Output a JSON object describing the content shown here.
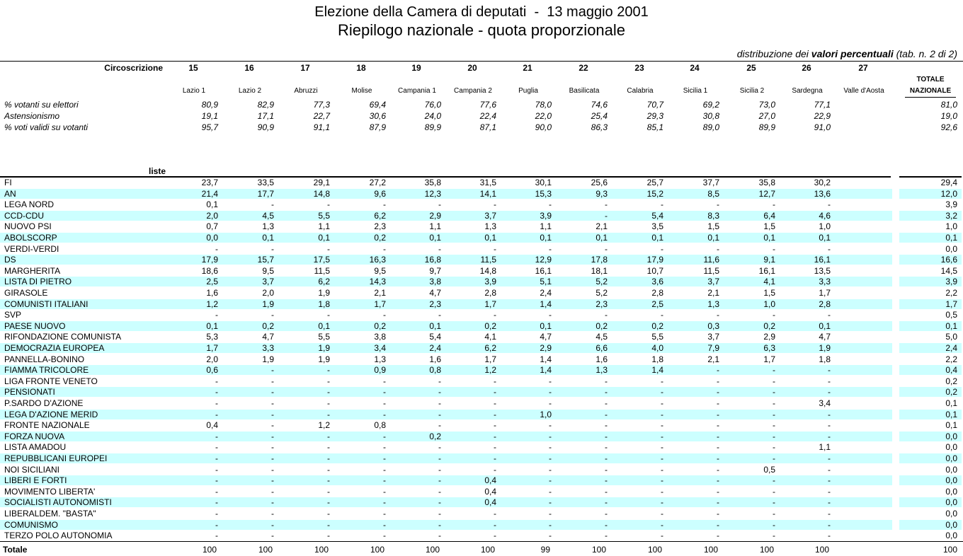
{
  "header": {
    "title": "Elezione della Camera di deputati  -  13 maggio 2001",
    "subtitle": "Riepilogo nazionale - quota proporzionale",
    "note_prefix": "distribuzione dei",
    "note_bold": "valori percentuali",
    "note_suffix": "(tab. n. 2 di 2)"
  },
  "columns": {
    "label": "Circoscrizione",
    "numbers": [
      "15",
      "16",
      "17",
      "18",
      "19",
      "20",
      "21",
      "22",
      "23",
      "24",
      "25",
      "26",
      "27"
    ],
    "names": [
      "Lazio 1",
      "Lazio 2",
      "Abruzzi",
      "Molise",
      "Campania 1",
      "Campania 2",
      "Puglia",
      "Basilicata",
      "Calabria",
      "Sicilia 1",
      "Sicilia 2",
      "Sardegna",
      "Valle d'Aosta"
    ],
    "total_label": [
      "TOTALE",
      "NAZIONALE"
    ]
  },
  "stats": [
    {
      "label": "% votanti su elettori",
      "values": [
        "80,9",
        "82,9",
        "77,3",
        "69,4",
        "76,0",
        "77,6",
        "78,0",
        "74,6",
        "70,7",
        "69,2",
        "73,0",
        "77,1"
      ],
      "total": "81,0"
    },
    {
      "label": "Astensionismo",
      "values": [
        "19,1",
        "17,1",
        "22,7",
        "30,6",
        "24,0",
        "22,4",
        "22,0",
        "25,4",
        "29,3",
        "30,8",
        "27,0",
        "22,9"
      ],
      "total": "19,0"
    },
    {
      "label": "% voti validi su votanti",
      "values": [
        "95,7",
        "90,9",
        "91,1",
        "87,9",
        "89,9",
        "87,1",
        "90,0",
        "86,3",
        "85,1",
        "89,0",
        "89,9",
        "91,0"
      ],
      "total": "92,6"
    }
  ],
  "lists": {
    "label": "liste",
    "rows": [
      {
        "name": "FI",
        "values": [
          "23,7",
          "33,5",
          "29,1",
          "27,2",
          "35,8",
          "31,5",
          "30,1",
          "25,6",
          "25,7",
          "37,7",
          "35,8",
          "30,2"
        ],
        "total": "29,4"
      },
      {
        "name": "AN",
        "values": [
          "21,4",
          "17,7",
          "14,8",
          "9,6",
          "12,3",
          "14,1",
          "15,3",
          "9,3",
          "15,2",
          "8,5",
          "12,7",
          "13,6"
        ],
        "total": "12,0"
      },
      {
        "name": "LEGA NORD",
        "values": [
          "0,1",
          "-",
          "-",
          "-",
          "-",
          "-",
          "-",
          "-",
          "-",
          "-",
          "-",
          "-"
        ],
        "total": "3,9"
      },
      {
        "name": "CCD-CDU",
        "values": [
          "2,0",
          "4,5",
          "5,5",
          "6,2",
          "2,9",
          "3,7",
          "3,9",
          "-",
          "5,4",
          "8,3",
          "6,4",
          "4,6"
        ],
        "total": "3,2"
      },
      {
        "name": "NUOVO PSI",
        "values": [
          "0,7",
          "1,3",
          "1,1",
          "2,3",
          "1,1",
          "1,3",
          "1,1",
          "2,1",
          "3,5",
          "1,5",
          "1,5",
          "1,0"
        ],
        "total": "1,0"
      },
      {
        "name": "ABOLSCORP",
        "values": [
          "0,0",
          "0,1",
          "0,1",
          "0,2",
          "0,1",
          "0,1",
          "0,1",
          "0,1",
          "0,1",
          "0,1",
          "0,1",
          "0,1"
        ],
        "total": "0,1"
      },
      {
        "name": "VERDI-VERDI",
        "values": [
          "-",
          "-",
          "-",
          "-",
          "-",
          "-",
          "-",
          "-",
          "-",
          "-",
          "-",
          "-"
        ],
        "total": "0,0"
      },
      {
        "name": "DS",
        "values": [
          "17,9",
          "15,7",
          "17,5",
          "16,3",
          "16,8",
          "11,5",
          "12,9",
          "17,8",
          "17,9",
          "11,6",
          "9,1",
          "16,1"
        ],
        "total": "16,6"
      },
      {
        "name": "MARGHERITA",
        "values": [
          "18,6",
          "9,5",
          "11,5",
          "9,5",
          "9,7",
          "14,8",
          "16,1",
          "18,1",
          "10,7",
          "11,5",
          "16,1",
          "13,5"
        ],
        "total": "14,5"
      },
      {
        "name": "LISTA DI PIETRO",
        "values": [
          "2,5",
          "3,7",
          "6,2",
          "14,3",
          "3,8",
          "3,9",
          "5,1",
          "5,2",
          "3,6",
          "3,7",
          "4,1",
          "3,3"
        ],
        "total": "3,9"
      },
      {
        "name": "GIRASOLE",
        "values": [
          "1,6",
          "2,0",
          "1,9",
          "2,1",
          "4,7",
          "2,8",
          "2,4",
          "5,2",
          "2,8",
          "2,1",
          "1,5",
          "1,7"
        ],
        "total": "2,2"
      },
      {
        "name": "COMUNISTI ITALIANI",
        "values": [
          "1,2",
          "1,9",
          "1,8",
          "1,7",
          "2,3",
          "1,7",
          "1,4",
          "2,3",
          "2,5",
          "1,3",
          "1,0",
          "2,8"
        ],
        "total": "1,7"
      },
      {
        "name": "SVP",
        "values": [
          "-",
          "-",
          "-",
          "-",
          "-",
          "-",
          "-",
          "-",
          "-",
          "-",
          "-",
          "-"
        ],
        "total": "0,5"
      },
      {
        "name": "PAESE NUOVO",
        "values": [
          "0,1",
          "0,2",
          "0,1",
          "0,2",
          "0,1",
          "0,2",
          "0,1",
          "0,2",
          "0,2",
          "0,3",
          "0,2",
          "0,1"
        ],
        "total": "0,1"
      },
      {
        "name": "RIFONDAZIONE COMUNISTA",
        "values": [
          "5,3",
          "4,7",
          "5,5",
          "3,8",
          "5,4",
          "4,1",
          "4,7",
          "4,5",
          "5,5",
          "3,7",
          "2,9",
          "4,7"
        ],
        "total": "5,0"
      },
      {
        "name": "DEMOCRAZIA EUROPEA",
        "values": [
          "1,7",
          "3,3",
          "1,9",
          "3,4",
          "2,4",
          "6,2",
          "2,9",
          "6,6",
          "4,0",
          "7,9",
          "6,3",
          "1,9"
        ],
        "total": "2,4"
      },
      {
        "name": "PANNELLA-BONINO",
        "values": [
          "2,0",
          "1,9",
          "1,9",
          "1,3",
          "1,6",
          "1,7",
          "1,4",
          "1,6",
          "1,8",
          "2,1",
          "1,7",
          "1,8"
        ],
        "total": "2,2"
      },
      {
        "name": "FIAMMA TRICOLORE",
        "values": [
          "0,6",
          "-",
          "-",
          "0,9",
          "0,8",
          "1,2",
          "1,4",
          "1,3",
          "1,4",
          "-",
          "-",
          "-"
        ],
        "total": "0,4"
      },
      {
        "name": "LIGA FRONTE VENETO",
        "values": [
          "-",
          "-",
          "-",
          "-",
          "-",
          "-",
          "-",
          "-",
          "-",
          "-",
          "-",
          "-"
        ],
        "total": "0,2"
      },
      {
        "name": "PENSIONATI",
        "values": [
          "-",
          "-",
          "-",
          "-",
          "-",
          "-",
          "-",
          "-",
          "-",
          "-",
          "-",
          "-"
        ],
        "total": "0,2"
      },
      {
        "name": "P.SARDO D'AZIONE",
        "values": [
          "-",
          "-",
          "-",
          "-",
          "-",
          "-",
          "-",
          "-",
          "-",
          "-",
          "-",
          "3,4"
        ],
        "total": "0,1"
      },
      {
        "name": "LEGA D'AZIONE MERID",
        "values": [
          "-",
          "-",
          "-",
          "-",
          "-",
          "-",
          "1,0",
          "-",
          "-",
          "-",
          "-",
          "-"
        ],
        "total": "0,1"
      },
      {
        "name": "FRONTE NAZIONALE",
        "values": [
          "0,4",
          "-",
          "1,2",
          "0,8",
          "-",
          "-",
          "-",
          "-",
          "-",
          "-",
          "-",
          "-"
        ],
        "total": "0,1"
      },
      {
        "name": "FORZA NUOVA",
        "values": [
          "-",
          "-",
          "-",
          "-",
          "0,2",
          "-",
          "-",
          "-",
          "-",
          "-",
          "-",
          "-"
        ],
        "total": "0,0"
      },
      {
        "name": "LISTA AMADOU",
        "values": [
          "-",
          "-",
          "-",
          "-",
          "-",
          "-",
          "-",
          "-",
          "-",
          "-",
          "-",
          "1,1"
        ],
        "total": "0,0"
      },
      {
        "name": "REPUBBLICANI EUROPEI",
        "values": [
          "-",
          "-",
          "-",
          "-",
          "-",
          "-",
          "-",
          "-",
          "-",
          "-",
          "-",
          "-"
        ],
        "total": "0,0"
      },
      {
        "name": "NOI SICILIANI",
        "values": [
          "-",
          "-",
          "-",
          "-",
          "-",
          "-",
          "-",
          "-",
          "-",
          "-",
          "0,5",
          "-"
        ],
        "total": "0,0"
      },
      {
        "name": "LIBERI E FORTI",
        "values": [
          "-",
          "-",
          "-",
          "-",
          "-",
          "0,4",
          "-",
          "-",
          "-",
          "-",
          "-",
          "-"
        ],
        "total": "0,0"
      },
      {
        "name": "MOVIMENTO LIBERTA'",
        "values": [
          "-",
          "-",
          "-",
          "-",
          "-",
          "0,4",
          "-",
          "-",
          "-",
          "-",
          "-",
          "-"
        ],
        "total": "0,0"
      },
      {
        "name": "SOCIALISTI AUTONOMISTI",
        "values": [
          "-",
          "-",
          "-",
          "-",
          "-",
          "0,4",
          "-",
          "-",
          "-",
          "-",
          "-",
          "-"
        ],
        "total": "0,0"
      },
      {
        "name": "LIBERALDEM. \"BASTA\"",
        "values": [
          "-",
          "-",
          "-",
          "-",
          "-",
          "-",
          "-",
          "-",
          "-",
          "-",
          "-",
          "-"
        ],
        "total": "0,0"
      },
      {
        "name": "COMUNISMO",
        "values": [
          "-",
          "-",
          "-",
          "-",
          "-",
          "-",
          "-",
          "-",
          "-",
          "-",
          "-",
          "-"
        ],
        "total": "0,0"
      },
      {
        "name": "TERZO POLO AUTONOMIA",
        "values": [
          "-",
          "-",
          "-",
          "-",
          "-",
          "-",
          "-",
          "-",
          "-",
          "-",
          "-",
          "-"
        ],
        "total": "0,0"
      }
    ]
  },
  "totals": {
    "label": "Totale",
    "values": [
      "100",
      "100",
      "100",
      "100",
      "100",
      "100",
      "99",
      "100",
      "100",
      "100",
      "100",
      "100"
    ],
    "total": "100"
  }
}
